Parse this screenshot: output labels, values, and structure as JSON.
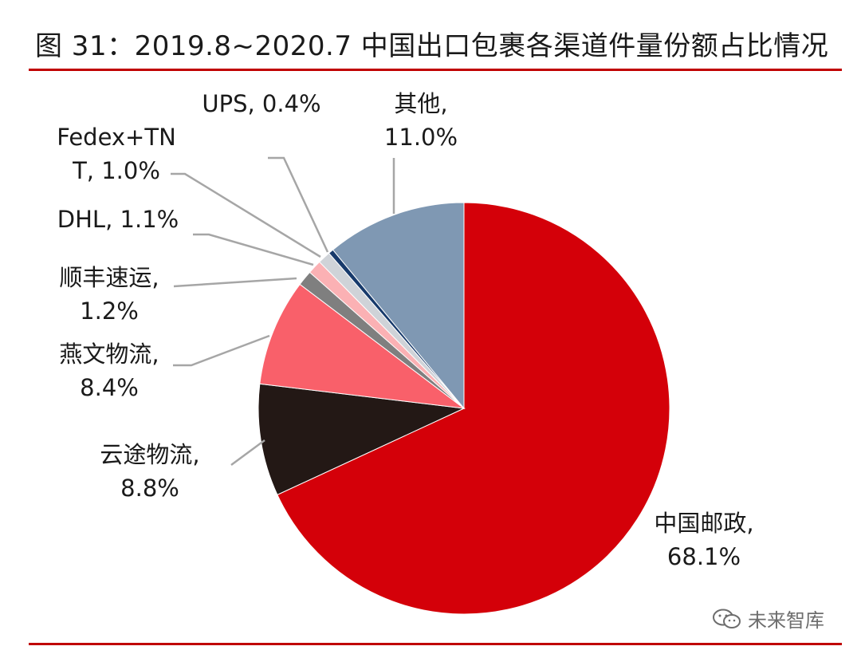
{
  "title": "图 31：2019.8~2020.7 中国出口包裹各渠道件量份额占比情况",
  "watermark": "未来智库",
  "colors": {
    "rule": "#c00000"
  },
  "chart_data": {
    "type": "pie",
    "unit": "%",
    "slices": [
      {
        "name": "中国邮政",
        "value": 68.1,
        "value_label": "68.1%",
        "color": "#d40009"
      },
      {
        "name": "云途物流",
        "value": 8.8,
        "value_label": "8.8%",
        "color": "#231815"
      },
      {
        "name": "燕文物流",
        "value": 8.4,
        "value_label": "8.4%",
        "color": "#f9606a"
      },
      {
        "name": "顺丰速运",
        "value": 1.2,
        "value_label": "1.2%",
        "color": "#7f7f7f"
      },
      {
        "name": "DHL",
        "value": 1.1,
        "value_label": "1.1%",
        "color": "#fbb1b4"
      },
      {
        "name": "Fedex+TNT",
        "value": 1.0,
        "value_label": "1.0%",
        "color": "#cfd3d8"
      },
      {
        "name": "UPS",
        "value": 0.4,
        "value_label": "0.4%",
        "color": "#173a6b"
      },
      {
        "name": "其他",
        "value": 11.0,
        "value_label": "11.0%",
        "color": "#7f98b3"
      }
    ],
    "labels": [
      {
        "line1": "中国邮政,",
        "line2": "68.1%"
      },
      {
        "line1": "云途物流,",
        "line2": "8.8%"
      },
      {
        "line1": "燕文物流,",
        "line2": "8.4%"
      },
      {
        "line1": "顺丰速运,",
        "line2": "1.2%"
      },
      {
        "line1": "DHL, 1.1%",
        "line2": ""
      },
      {
        "line1": "Fedex+TN",
        "line2": "T, 1.0%"
      },
      {
        "line1": "UPS, 0.4%",
        "line2": ""
      },
      {
        "line1": "其他,",
        "line2": "11.0%"
      }
    ]
  }
}
